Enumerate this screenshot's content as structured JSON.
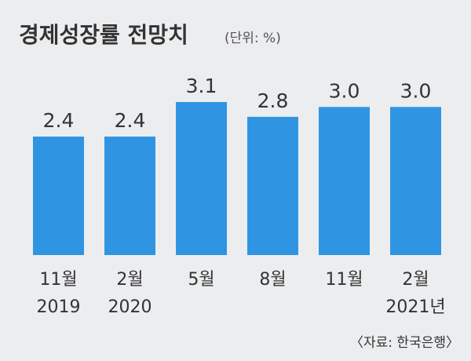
{
  "chart_data": {
    "type": "bar",
    "title": "경제성장률 전망치",
    "unit": "(단위: %)",
    "categories": [
      {
        "month": "11월",
        "year": "2019"
      },
      {
        "month": "2월",
        "year": "2020"
      },
      {
        "month": "5월",
        "year": ""
      },
      {
        "month": "8월",
        "year": ""
      },
      {
        "month": "11월",
        "year": ""
      },
      {
        "month": "2월",
        "year": "2021년"
      }
    ],
    "values": [
      2.4,
      2.4,
      3.1,
      2.8,
      3.0,
      3.0
    ],
    "value_labels": [
      "2.4",
      "2.4",
      "3.1",
      "2.8",
      "3.0",
      "3.0"
    ],
    "ylim": [
      0,
      3.1
    ],
    "grid": false,
    "source": "〈자료: 한국은행〉",
    "colors": {
      "bar": "#2f95e2",
      "background": "#ecedef",
      "baseline": "#b9bcc2"
    }
  }
}
